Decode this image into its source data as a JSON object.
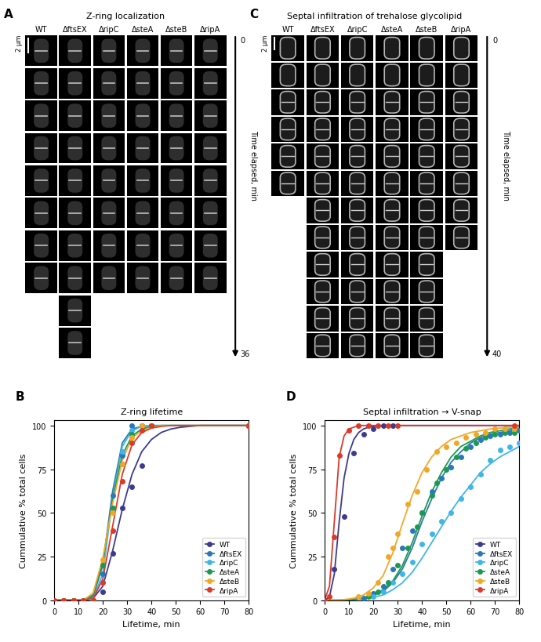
{
  "image_panels": [
    {
      "panel": "A",
      "title": "Z-ring localization",
      "columns": [
        "WT",
        "ΔftsEX",
        "ΔripC",
        "ΔsteA",
        "ΔsteB",
        "ΔripA"
      ],
      "frames": [
        8,
        10,
        8,
        8,
        8,
        8
      ],
      "scale_bar": "2 µm",
      "time_label": "Time elapsed, min",
      "time_range": [
        0,
        36
      ]
    },
    {
      "panel": "C",
      "title": "Septal infiltration of trehalose glycolipid",
      "columns": [
        "WT",
        "ΔftsEX",
        "ΔripC",
        "ΔsteA",
        "ΔsteB",
        "ΔripA"
      ],
      "frames": [
        6,
        12,
        12,
        12,
        12,
        8
      ],
      "scale_bar": "2 µm",
      "time_label": "Time elapsed, min",
      "time_range": [
        0,
        40
      ]
    }
  ],
  "chart_data": [
    {
      "type": "line",
      "panel": "B",
      "title": "Z-ring lifetime",
      "x_label": "Lifetime, min",
      "y_label": "Cummulative % total cells",
      "x": [
        0,
        4,
        8,
        12,
        16,
        20,
        24,
        28,
        32,
        36,
        40,
        44,
        48,
        52,
        56,
        60,
        64,
        68,
        72,
        76,
        80
      ],
      "xlim": [
        0,
        80
      ],
      "ylim": [
        0,
        103
      ],
      "xticks": [
        0,
        10,
        20,
        30,
        40,
        50,
        60,
        70,
        80
      ],
      "yticks": [
        0,
        25,
        50,
        75,
        100
      ],
      "legend": "lower right",
      "marker": "o",
      "grid": false,
      "series": [
        {
          "name": "WT",
          "color": "#3d3b8e",
          "values": [
            0,
            0,
            0,
            0,
            0,
            5,
            27,
            53,
            65,
            77,
            100,
            null,
            null,
            null,
            null,
            null,
            null,
            null,
            null,
            null,
            100
          ],
          "fit": [
            0,
            0,
            0,
            0,
            1,
            8,
            28,
            52,
            72,
            85,
            92,
            96,
            98,
            99,
            99.5,
            100,
            100,
            100,
            100,
            100,
            100
          ]
        },
        {
          "name": "ΔftsEX",
          "color": "#2a78b5",
          "values": [
            0,
            0,
            0,
            0,
            0,
            15,
            60,
            83,
            100,
            100,
            100,
            null,
            null,
            null,
            null,
            null,
            null,
            null,
            null,
            null,
            100
          ],
          "fit": [
            0,
            0,
            0,
            0,
            2,
            20,
            62,
            90,
            98,
            99.5,
            100,
            100,
            100,
            100,
            100,
            100,
            100,
            100,
            100,
            100,
            100
          ]
        },
        {
          "name": "ΔripC",
          "color": "#3fb6e6",
          "values": [
            0,
            0,
            0,
            0,
            0,
            10,
            53,
            85,
            97,
            100,
            100,
            null,
            null,
            null,
            null,
            null,
            null,
            null,
            null,
            null,
            100
          ],
          "fit": [
            0,
            0,
            0,
            0,
            1,
            15,
            58,
            88,
            97,
            99.5,
            100,
            100,
            100,
            100,
            100,
            100,
            100,
            100,
            100,
            100,
            100
          ]
        },
        {
          "name": "ΔsteA",
          "color": "#1a9a50",
          "values": [
            0,
            0,
            0,
            0,
            0,
            20,
            53,
            78,
            95,
            100,
            100,
            null,
            null,
            null,
            null,
            null,
            null,
            null,
            null,
            null,
            100
          ],
          "fit": [
            0,
            0,
            0,
            0,
            3,
            22,
            57,
            83,
            94,
            98,
            99.5,
            100,
            100,
            100,
            100,
            100,
            100,
            100,
            100,
            100,
            100
          ]
        },
        {
          "name": "ΔsteB",
          "color": "#f0a82a",
          "values": [
            0,
            0,
            0,
            0,
            0,
            23,
            50,
            78,
            93,
            100,
            100,
            null,
            null,
            null,
            null,
            null,
            null,
            null,
            null,
            null,
            100
          ],
          "fit": [
            0,
            0,
            0,
            0,
            4,
            24,
            55,
            80,
            93,
            97,
            99,
            100,
            100,
            100,
            100,
            100,
            100,
            100,
            100,
            100,
            100
          ]
        },
        {
          "name": "ΔripA",
          "color": "#d93a2b",
          "values": [
            0,
            0,
            0,
            0,
            0,
            10,
            40,
            68,
            90,
            97,
            100,
            null,
            null,
            null,
            null,
            null,
            null,
            null,
            null,
            null,
            100
          ],
          "fit": [
            0,
            0,
            0,
            0,
            1,
            12,
            42,
            72,
            89,
            96,
            98.5,
            99.5,
            100,
            100,
            100,
            100,
            100,
            100,
            100,
            100,
            100
          ]
        }
      ]
    },
    {
      "type": "line",
      "panel": "D",
      "title": "Septal infiltration → V-snap",
      "x_label": "Lifetime, min",
      "y_label": "Cummulative % total cells",
      "fit_x": [
        0,
        2,
        4,
        6,
        8,
        10,
        12,
        14,
        16,
        18,
        20,
        24,
        28,
        32,
        36,
        40,
        44,
        48,
        52,
        56,
        60,
        64,
        68,
        72,
        76,
        80
      ],
      "xlim": [
        0,
        80
      ],
      "ylim": [
        0,
        103
      ],
      "xticks": [
        0,
        10,
        20,
        30,
        40,
        50,
        60,
        70,
        80
      ],
      "yticks": [
        0,
        25,
        50,
        75,
        100
      ],
      "legend": "lower right",
      "marker": "o",
      "grid": false,
      "series": [
        {
          "name": "WT",
          "color": "#3d3b8e",
          "x": [
            0,
            4,
            8,
            12,
            16,
            20,
            24,
            28
          ],
          "values": [
            0,
            18,
            48,
            84,
            95,
            98,
            100,
            100
          ],
          "fit": [
            0,
            2,
            15,
            45,
            70,
            84,
            92,
            96,
            98,
            99,
            99.5,
            100,
            100,
            100,
            100,
            100,
            100,
            100,
            100,
            100,
            100,
            100,
            100,
            100,
            100,
            100
          ]
        },
        {
          "name": "ΔftsEX",
          "color": "#2a78b5",
          "x": [
            16,
            20,
            24,
            28,
            32,
            36,
            40,
            44,
            48,
            52,
            56,
            60,
            64,
            68,
            72,
            76,
            80
          ],
          "values": [
            1,
            4,
            8,
            18,
            30,
            40,
            50,
            62,
            70,
            76,
            82,
            88,
            92,
            94,
            95,
            96,
            97
          ],
          "fit": [
            0,
            0,
            0,
            0,
            0.2,
            0.3,
            0.5,
            0.8,
            1.2,
            1.8,
            2.7,
            5,
            10,
            18,
            30,
            45,
            58,
            70,
            79,
            85,
            90,
            93,
            95,
            96,
            97,
            98
          ]
        },
        {
          "name": "ΔripC",
          "color": "#3fb6e6",
          "x": [
            20,
            24,
            28,
            32,
            36,
            40,
            44,
            48,
            52,
            56,
            60,
            64,
            68,
            72,
            76,
            80
          ],
          "values": [
            2,
            5,
            10,
            15,
            22,
            32,
            38,
            45,
            50,
            58,
            65,
            72,
            80,
            86,
            88,
            90
          ],
          "fit": [
            0,
            0,
            0,
            0,
            0,
            0.2,
            0.3,
            0.5,
            0.8,
            1.2,
            1.7,
            3,
            6,
            10,
            16,
            24,
            33,
            42,
            51,
            59,
            66,
            73,
            78,
            82,
            85,
            88
          ]
        },
        {
          "name": "ΔsteA",
          "color": "#1a9a50",
          "x": [
            18,
            22,
            26,
            30,
            34,
            38,
            40,
            44,
            46,
            50,
            54,
            58,
            62,
            66,
            70,
            74,
            78
          ],
          "values": [
            2,
            5,
            10,
            20,
            30,
            42,
            50,
            60,
            67,
            75,
            82,
            87,
            90,
            93,
            95,
            96,
            96
          ],
          "fit": [
            0,
            0,
            0,
            0,
            0.2,
            0.3,
            0.5,
            0.8,
            1.2,
            2,
            3,
            6,
            11,
            20,
            33,
            48,
            62,
            73,
            82,
            88,
            91,
            94,
            96,
            97,
            98,
            98.5
          ]
        },
        {
          "name": "ΔsteB",
          "color": "#f0a82a",
          "x": [
            14,
            18,
            22,
            26,
            28,
            30,
            34,
            38,
            42,
            46,
            50,
            54,
            58,
            62,
            66,
            70,
            74,
            78
          ],
          "values": [
            2,
            4,
            10,
            25,
            30,
            38,
            55,
            62,
            75,
            85,
            88,
            90,
            93,
            95,
            96,
            98,
            98,
            98
          ],
          "fit": [
            0,
            0,
            0,
            0.2,
            0.4,
            0.7,
            1.2,
            2,
            3,
            5,
            7,
            14,
            27,
            44,
            60,
            73,
            82,
            88,
            92,
            94,
            96,
            97,
            98,
            98.5,
            99,
            99
          ]
        },
        {
          "name": "ΔripA",
          "color": "#d93a2b",
          "x": [
            0,
            2,
            4,
            6,
            10,
            14,
            18,
            22,
            26,
            30,
            78
          ],
          "values": [
            0,
            2,
            36,
            83,
            97,
            100,
            100,
            100,
            100,
            100,
            100
          ],
          "fit": [
            0,
            8,
            45,
            82,
            94,
            98,
            99,
            100,
            100,
            100,
            100,
            100,
            100,
            100,
            100,
            100,
            100,
            100,
            100,
            100,
            100,
            100,
            100,
            100,
            100,
            100
          ]
        }
      ]
    }
  ]
}
